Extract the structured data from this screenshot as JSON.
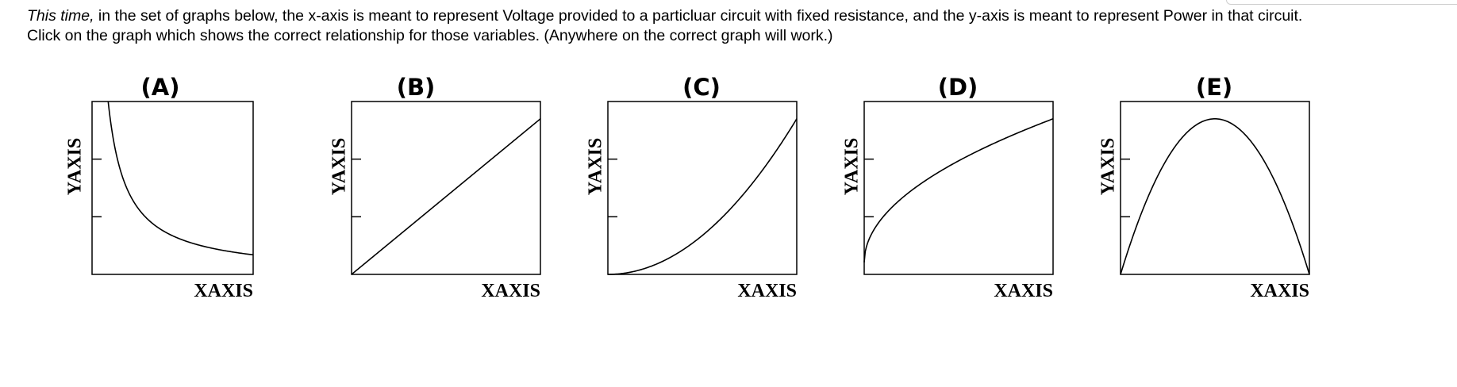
{
  "question": {
    "lead_italic": "This time,",
    "line1_rest": " in the set of graphs below, the x-axis is meant to represent  Voltage provided to a particluar circuit with fixed resistance, and the y-axis is meant to represent Power in that circuit.",
    "line2": "Click on the graph which shows the correct relationship for those variables. (Anywhere on the correct graph will work.)"
  },
  "graphs": [
    {
      "label": "(A)",
      "xlabel": "XAXIS",
      "ylabel": "YAXIS",
      "shape": "inverse",
      "y_ticks": 2
    },
    {
      "label": "(B)",
      "xlabel": "XAXIS",
      "ylabel": "YAXIS",
      "shape": "linear",
      "y_ticks": 2
    },
    {
      "label": "(C)",
      "xlabel": "XAXIS",
      "ylabel": "YAXIS",
      "shape": "quadratic",
      "y_ticks": 2
    },
    {
      "label": "(D)",
      "xlabel": "XAXIS",
      "ylabel": "YAXIS",
      "shape": "square-root",
      "y_ticks": 2
    },
    {
      "label": "(E)",
      "xlabel": "XAXIS",
      "ylabel": "YAXIS",
      "shape": "parabola-down",
      "y_ticks": 2
    }
  ]
}
